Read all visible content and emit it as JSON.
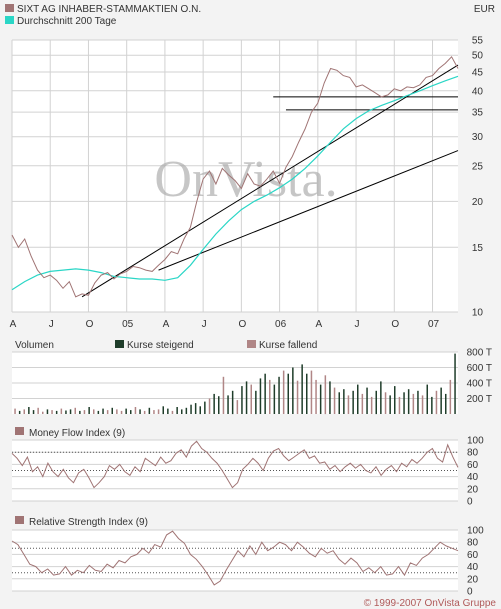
{
  "header": {
    "security": "SIXT AG INHABER-STAMMAKTIEN O.N.",
    "average": "Durchschnitt 200 Tage",
    "currency": "EUR"
  },
  "watermark": "OnVista.",
  "copyright": "© 1999-2007 OnVista Gruppe",
  "colors": {
    "price": "#a07474",
    "ma200": "#2ad6c6",
    "rising": "#1f3d2a",
    "falling": "#b08686",
    "trendline": "#000000",
    "grid": "#d2d2d2"
  },
  "chart_data": [
    {
      "type": "line",
      "title": "SIXT AG INHABER-STAMMAKTIEN O.N.",
      "unit": "EUR",
      "scale": "log",
      "ylim": [
        10,
        55
      ],
      "yticks": [
        10,
        15,
        20,
        25,
        30,
        35,
        40,
        45,
        50,
        55
      ],
      "xlim": [
        0,
        35
      ],
      "xtick_labels": [
        {
          "m": 0,
          "label": "A"
        },
        {
          "m": 3,
          "label": "J"
        },
        {
          "m": 6,
          "label": "O"
        },
        {
          "m": 9,
          "label": "05"
        },
        {
          "m": 12,
          "label": "A"
        },
        {
          "m": 15,
          "label": "J"
        },
        {
          "m": 18,
          "label": "O"
        },
        {
          "m": 21,
          "label": "06"
        },
        {
          "m": 24,
          "label": "A"
        },
        {
          "m": 27,
          "label": "J"
        },
        {
          "m": 30,
          "label": "O"
        },
        {
          "m": 33,
          "label": "07"
        }
      ],
      "series": [
        {
          "name": "SIXT AG INHABER-STAMMAKTIEN O.N.",
          "points": [
            [
              0,
              16.2
            ],
            [
              0.5,
              15.0
            ],
            [
              1,
              15.8
            ],
            [
              1.5,
              14.2
            ],
            [
              2,
              13.0
            ],
            [
              2.5,
              12.4
            ],
            [
              3,
              12.6
            ],
            [
              3.5,
              12.2
            ],
            [
              4,
              11.6
            ],
            [
              4.5,
              12.1
            ],
            [
              5,
              11.0
            ],
            [
              5.5,
              11.2
            ],
            [
              6,
              11.1
            ],
            [
              6.5,
              12.0
            ],
            [
              7,
              12.6
            ],
            [
              7.5,
              12.8
            ],
            [
              8,
              12.3
            ],
            [
              8.5,
              12.7
            ],
            [
              9,
              12.9
            ],
            [
              9.5,
              13.3
            ],
            [
              10,
              13.2
            ],
            [
              10.5,
              13.0
            ],
            [
              11,
              12.9
            ],
            [
              11.5,
              13.4
            ],
            [
              12,
              13.9
            ],
            [
              12.5,
              14.6
            ],
            [
              13,
              14.4
            ],
            [
              13.5,
              15.8
            ],
            [
              14,
              17.0
            ],
            [
              14.5,
              20.0
            ],
            [
              15,
              23.0
            ],
            [
              15.5,
              24.2
            ],
            [
              16,
              22.3
            ],
            [
              16.5,
              24.6
            ],
            [
              17,
              23.6
            ],
            [
              17.5,
              22.8
            ],
            [
              18,
              21.7
            ],
            [
              18.5,
              23.8
            ],
            [
              19,
              22.3
            ],
            [
              19.5,
              22.0
            ],
            [
              20,
              23.0
            ],
            [
              20.5,
              24.2
            ],
            [
              21,
              22.4
            ],
            [
              21.5,
              24.8
            ],
            [
              22,
              26.5
            ],
            [
              22.5,
              29.0
            ],
            [
              23,
              31.5
            ],
            [
              23.5,
              35.0
            ],
            [
              24,
              37.0
            ],
            [
              24.5,
              42.0
            ],
            [
              25,
              46.0
            ],
            [
              25.5,
              45.5
            ],
            [
              26,
              44.0
            ],
            [
              26.5,
              43.5
            ],
            [
              27,
              41.0
            ],
            [
              27.5,
              41.5
            ],
            [
              28,
              40.5
            ],
            [
              28.5,
              39.5
            ],
            [
              29,
              38.5
            ],
            [
              29.5,
              39.0
            ],
            [
              30,
              40.5
            ],
            [
              30.5,
              40.0
            ],
            [
              31,
              41.0
            ],
            [
              31.5,
              40.8
            ],
            [
              32,
              41.5
            ],
            [
              32.5,
              43.5
            ],
            [
              33,
              44.0
            ],
            [
              33.5,
              46.0
            ],
            [
              34,
              47.5
            ],
            [
              34.5,
              49.5
            ],
            [
              35,
              46.0
            ]
          ]
        },
        {
          "name": "Durchschnitt 200 Tage",
          "points": [
            [
              0,
              11.5
            ],
            [
              1,
              12.1
            ],
            [
              2,
              12.6
            ],
            [
              3,
              12.9
            ],
            [
              4,
              13.0
            ],
            [
              5,
              13.1
            ],
            [
              6,
              13.0
            ],
            [
              7,
              12.8
            ],
            [
              8,
              12.5
            ],
            [
              9,
              12.4
            ],
            [
              10,
              12.3
            ],
            [
              11,
              12.3
            ],
            [
              12,
              12.2
            ],
            [
              13,
              12.4
            ],
            [
              14,
              13.4
            ],
            [
              15,
              14.8
            ],
            [
              16,
              16.3
            ],
            [
              17,
              17.7
            ],
            [
              18,
              19.0
            ],
            [
              19,
              20.0
            ],
            [
              20,
              20.8
            ],
            [
              21,
              21.8
            ],
            [
              22,
              23.0
            ],
            [
              23,
              24.6
            ],
            [
              24,
              26.6
            ],
            [
              25,
              29.0
            ],
            [
              26,
              31.5
            ],
            [
              27,
              33.6
            ],
            [
              28,
              35.3
            ],
            [
              29,
              36.5
            ],
            [
              30,
              37.6
            ],
            [
              31,
              38.8
            ],
            [
              32,
              40.0
            ],
            [
              33,
              41.3
            ],
            [
              34,
              42.6
            ],
            [
              35,
              43.8
            ]
          ]
        }
      ],
      "trendlines": [
        {
          "from": [
            5.5,
            11.0
          ],
          "to": [
            35,
            47.0
          ]
        },
        {
          "from": [
            11.5,
            13.0
          ],
          "to": [
            35,
            27.5
          ]
        },
        {
          "from": [
            20.5,
            38.5
          ],
          "to": [
            35,
            38.5
          ]
        },
        {
          "from": [
            21.5,
            35.5
          ],
          "to": [
            35,
            35.5
          ]
        }
      ]
    },
    {
      "type": "bar",
      "title": "Volumen",
      "legend": [
        "Kurse steigend",
        "Kurse fallend"
      ],
      "ylim": [
        0,
        800
      ],
      "ytick_labels": [
        {
          "v": 200,
          "label": "200 T"
        },
        {
          "v": 400,
          "label": "400 T"
        },
        {
          "v": 600,
          "label": "600 T"
        },
        {
          "v": 800,
          "label": "800 T"
        }
      ],
      "values": [
        70,
        40,
        60,
        90,
        50,
        80,
        30,
        60,
        50,
        40,
        70,
        45,
        60,
        80,
        40,
        50,
        90,
        60,
        40,
        70,
        50,
        80,
        60,
        40,
        70,
        50,
        90,
        60,
        40,
        80,
        50,
        60,
        100,
        70,
        40,
        90,
        60,
        80,
        120,
        140,
        100,
        160,
        200,
        260,
        230,
        480,
        240,
        300,
        180,
        360,
        420,
        380,
        300,
        460,
        520,
        440,
        380,
        480,
        560,
        520,
        600,
        430,
        640,
        520,
        560,
        440,
        380,
        500,
        420,
        340,
        280,
        320,
        240,
        300,
        380,
        260,
        340,
        220,
        300,
        420,
        280,
        240,
        360,
        220,
        280,
        320,
        260,
        300,
        240,
        380,
        220,
        300,
        340,
        260,
        440,
        780
      ],
      "rising": [
        0,
        1,
        0,
        1,
        1,
        0,
        0,
        1,
        0,
        1,
        0,
        1,
        1,
        0,
        1,
        0,
        1,
        0,
        1,
        1,
        0,
        1,
        0,
        0,
        1,
        1,
        0,
        1,
        0,
        1,
        0,
        0,
        1,
        1,
        0,
        1,
        1,
        1,
        1,
        1,
        1,
        1,
        0,
        1,
        1,
        0,
        1,
        1,
        0,
        1,
        1,
        0,
        1,
        1,
        1,
        0,
        1,
        1,
        0,
        1,
        1,
        0,
        1,
        1,
        0,
        0,
        1,
        0,
        1,
        0,
        1,
        1,
        0,
        1,
        1,
        0,
        1,
        0,
        1,
        1,
        0,
        1,
        1,
        0,
        1,
        1,
        0,
        1,
        0,
        1,
        1,
        0,
        1,
        1,
        0,
        1
      ]
    },
    {
      "type": "line",
      "title": "Money Flow Index (9)",
      "ylim": [
        0,
        100
      ],
      "yticks": [
        0,
        20,
        40,
        60,
        80,
        100
      ],
      "reference_lines": [
        50,
        80
      ],
      "values": [
        78,
        70,
        58,
        72,
        48,
        56,
        40,
        62,
        48,
        40,
        52,
        38,
        30,
        46,
        52,
        38,
        22,
        30,
        40,
        58,
        52,
        60,
        48,
        42,
        56,
        48,
        70,
        64,
        58,
        72,
        62,
        66,
        78,
        84,
        72,
        90,
        98,
        86,
        80,
        70,
        62,
        50,
        36,
        22,
        30,
        52,
        60,
        70,
        62,
        50,
        70,
        82,
        86,
        74,
        66,
        72,
        78,
        84,
        70,
        74,
        62,
        64,
        52,
        58,
        48,
        56,
        62,
        54,
        60,
        50,
        46,
        56,
        42,
        52,
        58,
        48,
        62,
        56,
        68,
        62,
        70,
        80,
        86,
        70,
        64,
        92,
        72,
        55
      ]
    },
    {
      "type": "line",
      "title": "Relative Strength Index (9)",
      "ylim": [
        0,
        100
      ],
      "yticks": [
        0,
        20,
        40,
        60,
        80,
        100
      ],
      "reference_lines": [
        30,
        70
      ],
      "values": [
        82,
        76,
        60,
        44,
        40,
        30,
        36,
        26,
        28,
        40,
        26,
        34,
        30,
        42,
        34,
        32,
        44,
        38,
        50,
        46,
        56,
        60,
        70,
        62,
        76,
        72,
        92,
        98,
        86,
        78,
        60,
        52,
        40,
        26,
        10,
        16,
        34,
        50,
        66,
        56,
        74,
        60,
        80,
        66,
        72,
        80,
        76,
        66,
        80,
        72,
        62,
        56,
        70,
        62,
        66,
        52,
        44,
        54,
        46,
        32,
        38,
        30,
        40,
        26,
        28,
        40,
        26,
        46,
        42,
        54,
        60,
        70,
        80,
        74,
        70,
        66
      ]
    }
  ]
}
